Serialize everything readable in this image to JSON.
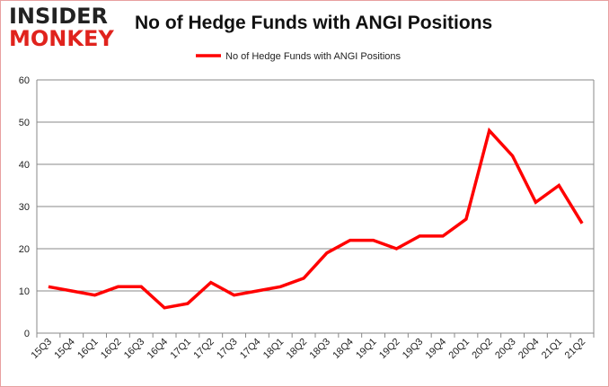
{
  "logo": {
    "line1": "INSIDER",
    "line2": "MONKEY"
  },
  "chart_data": {
    "type": "line",
    "title": "No of Hedge Funds with ANGI Positions",
    "xlabel": "",
    "ylabel": "",
    "ylim": [
      0,
      60
    ],
    "yticks": [
      0,
      10,
      20,
      30,
      40,
      50,
      60
    ],
    "grid": true,
    "legend_position": "top-center",
    "categories": [
      "15Q3",
      "15Q4",
      "16Q1",
      "16Q2",
      "16Q3",
      "16Q4",
      "17Q1",
      "17Q2",
      "17Q3",
      "17Q4",
      "18Q1",
      "18Q2",
      "18Q3",
      "18Q4",
      "19Q1",
      "19Q2",
      "19Q3",
      "19Q4",
      "20Q1",
      "20Q2",
      "20Q3",
      "20Q4",
      "21Q1",
      "21Q2"
    ],
    "series": [
      {
        "name": "No of Hedge Funds with ANGI Positions",
        "color": "#ff0000",
        "values": [
          11,
          10,
          9,
          11,
          11,
          6,
          7,
          12,
          9,
          10,
          11,
          13,
          19,
          22,
          22,
          20,
          23,
          23,
          27,
          48,
          42,
          31,
          35,
          26
        ]
      }
    ]
  }
}
